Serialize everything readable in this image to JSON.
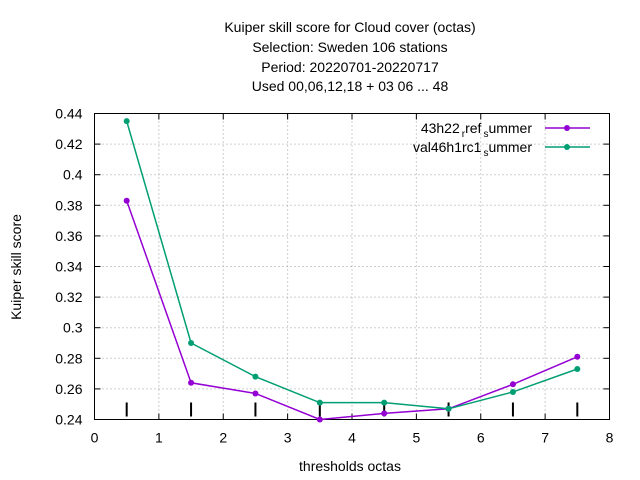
{
  "title": {
    "line1": "Kuiper skill score  for Cloud cover (octas)",
    "line2": "Selection: Sweden    106 stations",
    "line3": "Period: 20220701-20220717",
    "line4": "Used  00,06,12,18  + 03 06 ... 48"
  },
  "colors": {
    "series1": "#9400d3",
    "series2": "#009e73"
  },
  "legend_parts": {
    "s1_a": "43h22",
    "s1_b": "ref",
    "s1_c": "ummer",
    "s2_a": "val46h1rc1",
    "s2_c": "ummer",
    "sub_r": "r",
    "sub_s": "s"
  },
  "chart_data": {
    "type": "line",
    "title": "Kuiper skill score  for Cloud cover (octas)",
    "xlabel": "thresholds octas",
    "ylabel": "Kuiper skill score",
    "xlim": [
      0,
      8
    ],
    "ylim": [
      0.24,
      0.44
    ],
    "xticks": [
      "0",
      "1",
      "2",
      "3",
      "4",
      "5",
      "6",
      "7",
      "8"
    ],
    "yticks": [
      "0.24",
      "0.26",
      "0.28",
      "0.3",
      "0.32",
      "0.34",
      "0.36",
      "0.38",
      "0.4",
      "0.42",
      "0.44"
    ],
    "grid": true,
    "legend_position": "top-right",
    "x": [
      0.5,
      1.5,
      2.5,
      3.5,
      4.5,
      5.5,
      6.5,
      7.5
    ],
    "series": [
      {
        "name": "43h22 ref_summer",
        "values": [
          0.383,
          0.264,
          0.257,
          0.24,
          0.244,
          0.247,
          0.263,
          0.281
        ]
      },
      {
        "name": "val46h1rc1_summer",
        "values": [
          0.435,
          0.29,
          0.268,
          0.251,
          0.251,
          0.247,
          0.258,
          0.273
        ]
      }
    ]
  }
}
